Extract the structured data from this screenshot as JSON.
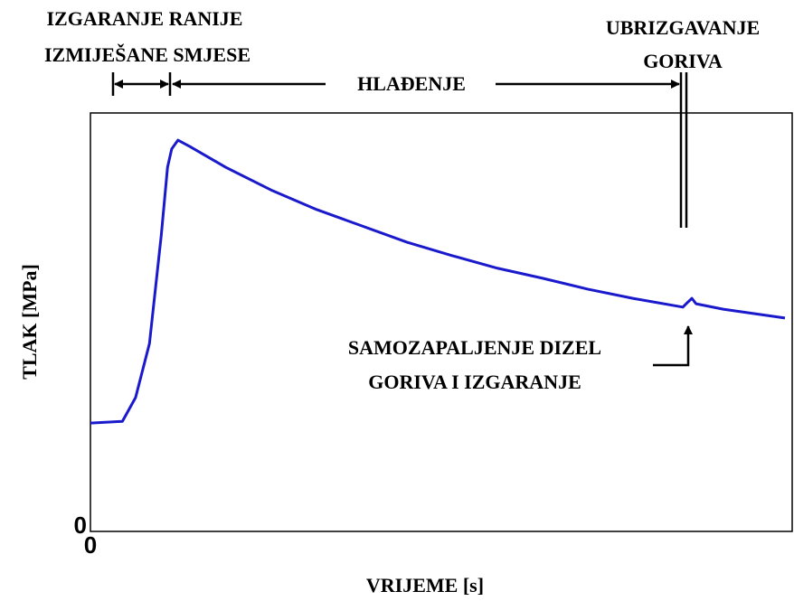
{
  "chart_data": {
    "type": "line",
    "x_label": "VRIJEME [s]",
    "y_label": "TLAK [MPa]",
    "annotations": [
      "IZGARANJE RANIJE",
      "IZMIJEŠANE SMJESE",
      "HLAĐENJE",
      "UBRIZGAVANJE",
      "GORIVA",
      "SAMOZAPALJENJE DIZEL",
      "GORIVA I IZGARANJE"
    ],
    "xlim": [
      0,
      100
    ],
    "ylim": [
      0,
      100
    ],
    "xticks": [
      0
    ],
    "yticks": [
      0
    ],
    "x": [
      0,
      4.6,
      6.5,
      8.5,
      10.2,
      11.1,
      11.7,
      12.6,
      14.3,
      19.5,
      26.0,
      32.6,
      39.1,
      45.6,
      52.1,
      58.6,
      65.1,
      71.6,
      78.1,
      85.3,
      85.9,
      86.6,
      87.2,
      91.1,
      100
    ],
    "series": [
      {
        "color": "#1a1acc",
        "values": [
          25.9,
          26.3,
          32.0,
          44.9,
          70.8,
          87.0,
          91.4,
          93.5,
          92.0,
          87.0,
          81.6,
          76.9,
          73.0,
          69.1,
          65.9,
          62.9,
          60.5,
          57.9,
          55.7,
          53.6,
          54.6,
          55.7,
          54.4,
          53.1,
          51.0
        ]
      }
    ]
  }
}
